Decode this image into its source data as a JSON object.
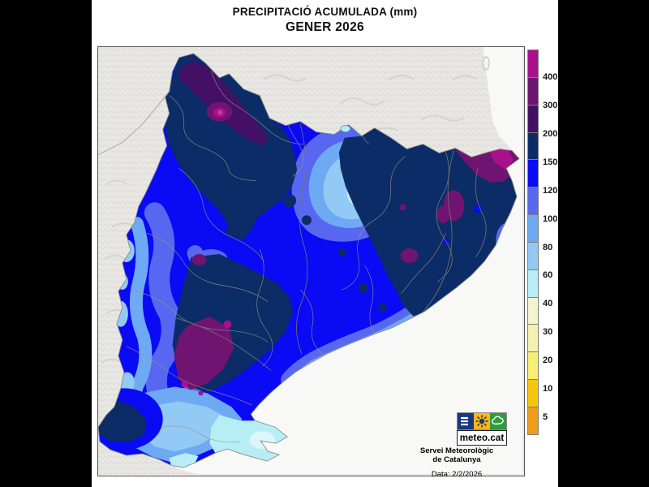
{
  "title": {
    "line1": "PRECIPITACIÓ ACUMULADA (mm)",
    "line2": "GENER 2026"
  },
  "legend": {
    "unit": "mm",
    "colors": [
      "#aa0f8c",
      "#6f1470",
      "#441066",
      "#0b2c66",
      "#0a0af5",
      "#5867ef",
      "#6ea9f3",
      "#93c9f5",
      "#b7eef5",
      "#f4f3cf",
      "#f4f0ad",
      "#f7ef72",
      "#f7c60b",
      "#ef9d19"
    ],
    "labels": [
      "400",
      "300",
      "200",
      "150",
      "120",
      "100",
      "80",
      "60",
      "40",
      "30",
      "20",
      "10",
      "5"
    ]
  },
  "branding": {
    "logo_text": "meteo.cat",
    "org_line1": "Servei Meteorològic",
    "org_line2": "de Catalunya",
    "date_text": "Data: 2/2/2026",
    "logo_icons": [
      "menu-lines-icon",
      "sun-icon",
      "cloud-icon"
    ],
    "logo_colors": {
      "blue": "#17377e",
      "yellow": "#fdb515",
      "green": "#2e9c3f"
    }
  },
  "map_colors": {
    "land": "#e9e7e4",
    "sea": "#f8f8f6",
    "boundary_lines": "#9b9283",
    "province_lines": "#787670",
    "region_outline": "#8c8c86"
  },
  "chart_data": {
    "type": "heatmap",
    "title": "PRECIPITACIÓ ACUMULADA (mm) — GENER 2026",
    "region": "Catalunya",
    "scale_breakpoints_mm": [
      5,
      10,
      20,
      30,
      40,
      60,
      80,
      100,
      120,
      150,
      200,
      300,
      400
    ],
    "scale_colors_high_to_low": [
      "#aa0f8c",
      "#6f1470",
      "#441066",
      "#0b2c66",
      "#0a0af5",
      "#5867ef",
      "#6ea9f3",
      "#93c9f5",
      "#b7eef5",
      "#f4f3cf",
      "#f4f0ad",
      "#f7ef72",
      "#f7c60b",
      "#ef9d19"
    ],
    "legend_position": "right",
    "source": "Servei Meteorològic de Catalunya",
    "date_label": "Data: 2/2/2026"
  }
}
